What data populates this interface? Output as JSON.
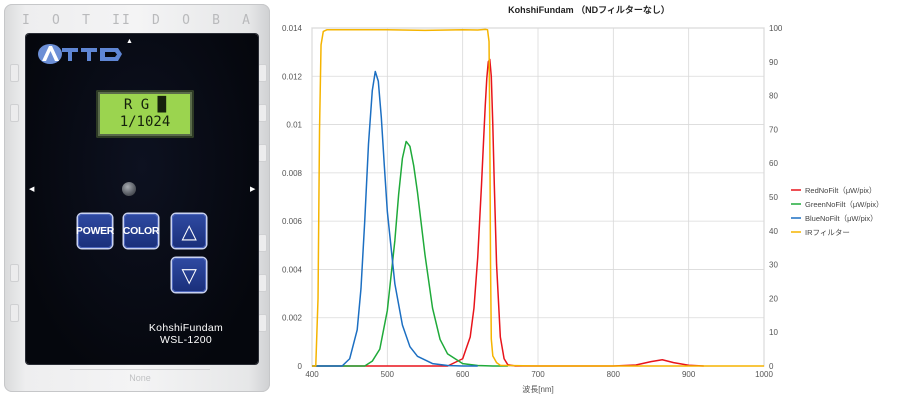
{
  "device": {
    "case_letters": [
      "I",
      "O",
      "T",
      "II",
      "D",
      "O",
      "B",
      "A"
    ],
    "logo_text": "ATTO",
    "lcd_line1": "R G █",
    "lcd_line2": "1/1024",
    "buttons": [
      {
        "key": "power",
        "label": "POWER"
      },
      {
        "key": "color",
        "label": "COLOR"
      },
      {
        "key": "up",
        "label": "△"
      },
      {
        "key": "down",
        "label": "▽"
      }
    ],
    "model_name": "KohshiFundam",
    "model_number": "WSL-1200",
    "foot_text": "None"
  },
  "chart_data": {
    "type": "line",
    "title": "KohshiFundam （NDフィルターなし）",
    "xlabel": "波長[nm]",
    "ylabel": "",
    "y2label": "",
    "xlim": [
      400,
      1000
    ],
    "ylim": [
      0,
      0.014
    ],
    "y2lim": [
      0,
      100
    ],
    "xticks": [
      "400",
      "500",
      "600",
      "700",
      "800",
      "900",
      "1000"
    ],
    "yticks": [
      "0",
      "0.002",
      "0.004",
      "0.006",
      "0.008",
      "0.01",
      "0.012",
      "0.014"
    ],
    "y2ticks": [
      "0",
      "10",
      "20",
      "30",
      "40",
      "50",
      "60",
      "70",
      "80",
      "90",
      "100"
    ],
    "grid": true,
    "legend_position": "right",
    "series": [
      {
        "name": "RedNoFilt（μW/pix）",
        "color": "#e8141b",
        "axis": "left",
        "x": [
          400,
          580,
          600,
          610,
          615,
          620,
          625,
          628,
          630,
          632,
          634,
          636,
          638,
          640,
          642,
          645,
          650,
          655,
          660,
          670,
          700,
          800,
          830,
          850,
          865,
          880,
          900,
          920
        ],
        "y": [
          0,
          0,
          0.0003,
          0.0012,
          0.0024,
          0.0045,
          0.0075,
          0.0095,
          0.0108,
          0.0119,
          0.0126,
          0.0127,
          0.012,
          0.01,
          0.0075,
          0.0042,
          0.0012,
          0.0003,
          5e-05,
          0,
          0,
          0,
          4e-05,
          0.00018,
          0.00026,
          0.00014,
          3e-05,
          0
        ]
      },
      {
        "name": "GreenNoFilt（μW/pix）",
        "color": "#1faa3a",
        "axis": "left",
        "x": [
          400,
          470,
          480,
          490,
          500,
          510,
          515,
          520,
          525,
          530,
          535,
          540,
          545,
          550,
          560,
          570,
          580,
          600,
          620,
          640,
          660
        ],
        "y": [
          0,
          0,
          0.0002,
          0.0007,
          0.0023,
          0.0052,
          0.0071,
          0.0086,
          0.0093,
          0.0091,
          0.0083,
          0.0072,
          0.0059,
          0.0046,
          0.0024,
          0.0011,
          0.0005,
          0.0001,
          2e-05,
          0,
          0
        ]
      },
      {
        "name": "BlueNoFilt（μW/pix）",
        "color": "#1c6fc2",
        "axis": "left",
        "x": [
          400,
          440,
          450,
          460,
          465,
          470,
          475,
          480,
          484,
          488,
          492,
          496,
          500,
          510,
          520,
          530,
          540,
          560,
          580,
          600,
          620
        ],
        "y": [
          0,
          0,
          0.0003,
          0.0015,
          0.0032,
          0.006,
          0.0092,
          0.0114,
          0.0122,
          0.0118,
          0.0103,
          0.0083,
          0.0064,
          0.0034,
          0.0017,
          0.0008,
          0.0004,
          0.0001,
          2e-05,
          0,
          0
        ]
      },
      {
        "name": "IRフィルター",
        "color": "#f5b400",
        "axis": "right",
        "x": [
          400,
          405,
          408,
          410,
          412,
          415,
          420,
          450,
          500,
          550,
          600,
          620,
          630,
          633,
          635,
          636,
          637,
          638,
          640,
          645,
          650,
          700,
          800,
          900,
          1000
        ],
        "y": [
          0,
          0,
          20,
          70,
          95,
          99,
          99.5,
          99.5,
          99.5,
          99.3,
          99.5,
          99.4,
          99.6,
          99.5,
          96,
          70,
          30,
          8,
          3,
          1,
          0.2,
          0,
          0,
          0,
          0
        ]
      }
    ]
  }
}
